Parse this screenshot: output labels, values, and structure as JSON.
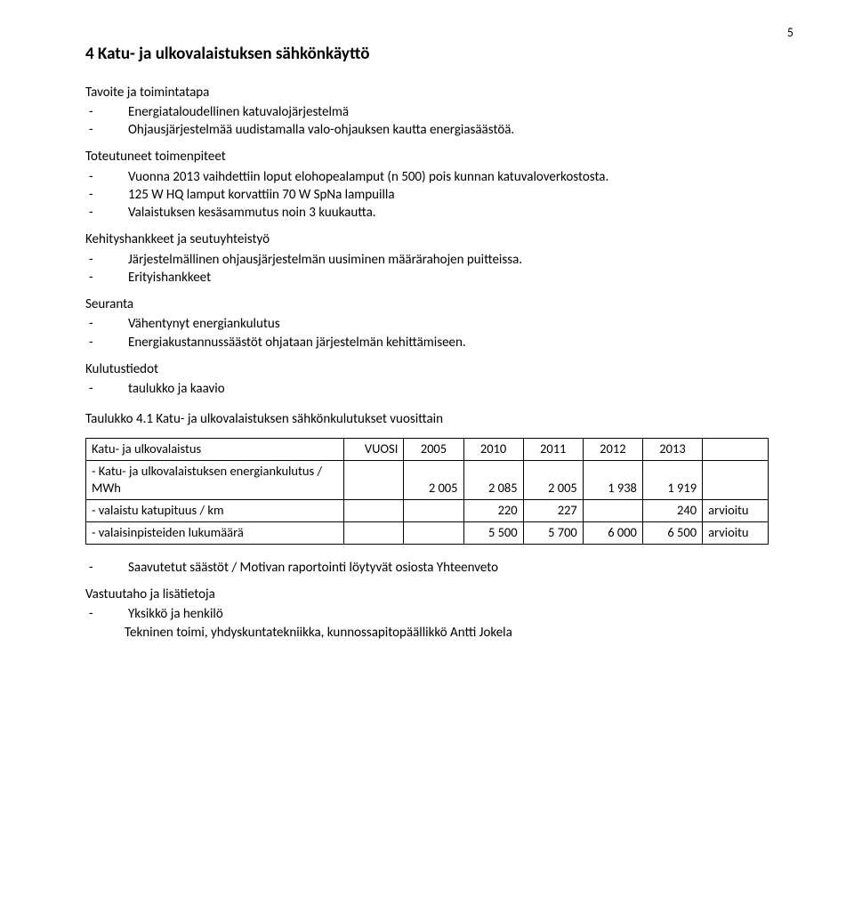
{
  "page_number": "5",
  "heading": "4   Katu- ja ulkovalaistuksen sähkönkäyttö",
  "sec1_title": "Tavoite ja toimintatapa",
  "sec1_items": [
    "Energiataloudellinen katuvalojärjestelmä",
    "Ohjausjärjestelmää uudistamalla valo-ohjauksen kautta energiasäästöä."
  ],
  "sec2_title": "Toteutuneet toimenpiteet",
  "sec2_items": [
    "Vuonna 2013 vaihdettiin loput elohopealamput (n 500) pois kunnan katuvaloverkostosta.",
    "125 W HQ lamput korvattiin 70 W SpNa lampuilla",
    "Valaistuksen kesäsammutus noin 3 kuukautta."
  ],
  "sec3_title": "Kehityshankkeet ja seutuyhteistyö",
  "sec3_items": [
    "Järjestelmällinen ohjausjärjestelmän uusiminen määrärahojen puitteissa.",
    "Erityishankkeet"
  ],
  "sec4_title": "Seuranta",
  "sec4_items": [
    "Vähentynyt energiankulutus",
    "Energiakustannussäästöt ohjataan järjestelmän kehittämiseen."
  ],
  "sec5_title": "Kulutustiedot",
  "sec5_items": [
    "taulukko ja kaavio"
  ],
  "table_caption": "Taulukko 4.1 Katu- ja ulkovalaistuksen sähkönkulutukset vuosittain",
  "table": {
    "header": [
      "Katu- ja ulkovalaistus",
      "VUOSI",
      "2005",
      "2010",
      "2011",
      "2012",
      "2013",
      ""
    ],
    "r1_label": "- Katu- ja ulkovalaistuksen energiankulutus / MWh",
    "r1": [
      "2 005",
      "2 085",
      "2 005",
      "1 938",
      "1 919",
      ""
    ],
    "r2_label": " - valaistu katupituus / km",
    "r2": [
      "",
      "220",
      "227",
      "",
      "240",
      "arvioitu"
    ],
    "r3_label": "  - valaisinpisteiden lukumäärä",
    "r3": [
      "",
      "5 500",
      "5 700",
      "6 000",
      "6 500",
      "arvioitu"
    ]
  },
  "post_table_item": "Saavutetut säästöt / Motivan raportointi löytyvät osiosta Yhteenveto",
  "sec6_title": "Vastuutaho ja lisätietoja",
  "sec6_items": [
    "Yksikkö ja henkilö"
  ],
  "sec6_tail": "Tekninen toimi, yhdyskuntatekniikka, kunnossapitopäällikkö Antti Jokela"
}
